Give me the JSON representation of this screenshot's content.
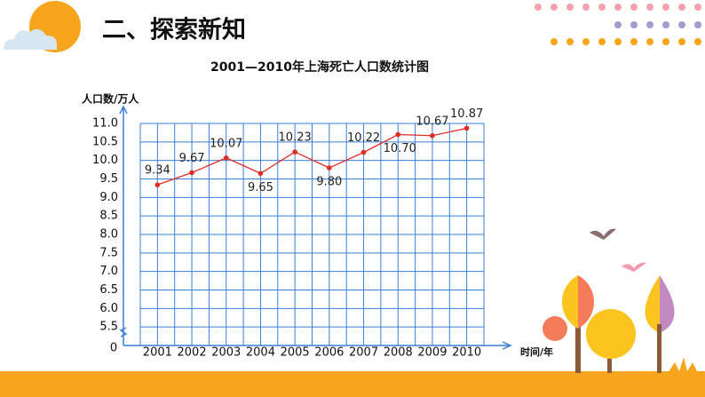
{
  "header": {
    "title": "二、探索新知"
  },
  "chart_data": {
    "type": "line",
    "title": "2001—2010年上海死亡人口数统计图",
    "y_axis_label": "人口数/万人",
    "x_axis_label": "时间/年",
    "origin_label": "0",
    "categories": [
      "2001",
      "2002",
      "2003",
      "2004",
      "2005",
      "2006",
      "2007",
      "2008",
      "2009",
      "2010"
    ],
    "values": [
      9.34,
      9.67,
      10.07,
      9.65,
      10.23,
      9.8,
      10.22,
      10.7,
      10.67,
      10.87
    ],
    "value_labels": [
      "9.34",
      "9.67",
      "10.07",
      "9.65",
      "10.23",
      "9.80",
      "10.22",
      "10.70",
      "10.67",
      "10.87"
    ],
    "color": "#e02b27",
    "ylim": [
      5,
      11
    ],
    "yticks": [
      5.5,
      {
        "value": 6,
        "label": "6.0"
      },
      6.5,
      {
        "value": 7,
        "label": "7.0"
      },
      7.5,
      {
        "value": 8,
        "label": "8.0"
      },
      8.5,
      {
        "value": 9,
        "label": "9.0"
      },
      9.5,
      {
        "value": 10,
        "label": "10.0"
      },
      10.5,
      {
        "value": 11,
        "label": "11.0"
      }
    ],
    "grid": true
  }
}
